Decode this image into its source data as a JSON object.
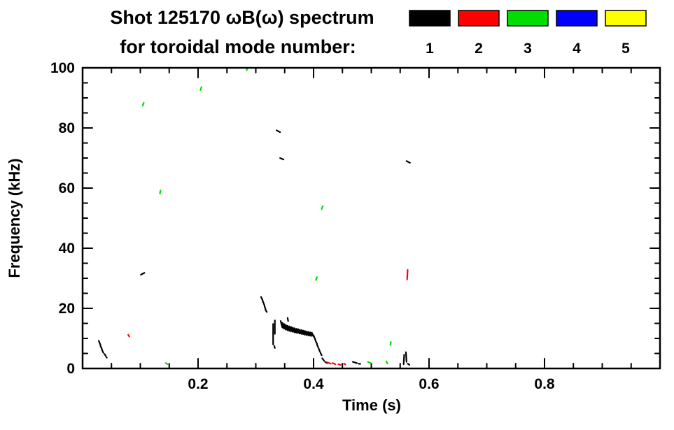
{
  "title": {
    "line1": "Shot 125170 ωB(ω) spectrum",
    "line2": "for toroidal mode number:"
  },
  "legend": {
    "items": [
      {
        "label": "1",
        "color": "#000000"
      },
      {
        "label": "2",
        "color": "#ff0000"
      },
      {
        "label": "3",
        "color": "#00dd00"
      },
      {
        "label": "4",
        "color": "#0000ff"
      },
      {
        "label": "5",
        "color": "#ffff00"
      }
    ]
  },
  "chart_data": {
    "type": "scatter",
    "title": "Shot 125170 ωB(ω) spectrum for toroidal mode number:",
    "xlabel": "Time (s)",
    "ylabel": "Frequency (kHz)",
    "xlim": [
      0,
      1.0
    ],
    "ylim": [
      0,
      100
    ],
    "x_ticks": [
      0.2,
      0.4,
      0.6,
      0.8
    ],
    "x_tick_labels": [
      "0.2",
      "0.4",
      "0.6",
      "0.8"
    ],
    "y_ticks": [
      0,
      20,
      40,
      60,
      80,
      100
    ],
    "y_tick_labels": [
      "0",
      "20",
      "40",
      "60",
      "80",
      "100"
    ],
    "x_minor_step": 0.05,
    "y_minor_step": 5,
    "grid": false,
    "legend_position": "top-right",
    "series": [
      {
        "name": "1",
        "color": "#000000",
        "segments": [
          [
            0.028,
            9.2,
            0.031,
            7.8
          ],
          [
            0.031,
            7.5,
            0.034,
            6.2
          ],
          [
            0.034,
            6.0,
            0.036,
            5.2
          ],
          [
            0.038,
            4.8,
            0.04,
            4.2
          ],
          [
            0.041,
            3.8,
            0.042,
            3.6
          ],
          [
            0.101,
            31.2,
            0.107,
            31.8
          ],
          [
            0.309,
            23.8,
            0.312,
            22.6
          ],
          [
            0.312,
            22.4,
            0.315,
            21.0
          ],
          [
            0.315,
            20.8,
            0.317,
            19.6
          ],
          [
            0.317,
            19.4,
            0.319,
            18.8
          ],
          [
            0.33,
            14.8,
            0.33,
            8.0
          ],
          [
            0.333,
            16.0,
            0.333,
            11.5
          ],
          [
            0.332,
            7.5,
            0.333,
            6.8
          ],
          [
            0.336,
            79.2,
            0.342,
            78.6
          ],
          [
            0.342,
            70.0,
            0.348,
            69.5
          ],
          [
            0.561,
            69.0,
            0.567,
            68.4
          ],
          [
            0.343,
            15.8,
            0.346,
            13.6
          ],
          [
            0.346,
            15.2,
            0.349,
            13.2
          ],
          [
            0.349,
            14.8,
            0.352,
            12.9
          ],
          [
            0.352,
            14.5,
            0.355,
            12.7
          ],
          [
            0.355,
            16.8,
            0.356,
            15.8
          ],
          [
            0.355,
            14.2,
            0.358,
            12.5
          ],
          [
            0.358,
            14.0,
            0.361,
            12.3
          ],
          [
            0.361,
            13.8,
            0.364,
            12.2
          ],
          [
            0.364,
            13.6,
            0.367,
            12.0
          ],
          [
            0.367,
            13.4,
            0.37,
            11.9
          ],
          [
            0.37,
            13.2,
            0.373,
            11.8
          ],
          [
            0.373,
            13.1,
            0.376,
            11.6
          ],
          [
            0.376,
            12.9,
            0.379,
            11.5
          ],
          [
            0.379,
            12.8,
            0.382,
            11.4
          ],
          [
            0.382,
            12.6,
            0.385,
            11.2
          ],
          [
            0.385,
            12.5,
            0.388,
            11.1
          ],
          [
            0.388,
            12.3,
            0.391,
            11.0
          ],
          [
            0.391,
            12.2,
            0.394,
            10.9
          ],
          [
            0.394,
            12.0,
            0.397,
            10.8
          ],
          [
            0.397,
            11.9,
            0.4,
            10.7
          ],
          [
            0.4,
            11.0,
            0.403,
            9.6
          ],
          [
            0.403,
            9.4,
            0.406,
            8.2
          ],
          [
            0.406,
            8.0,
            0.408,
            7.0
          ],
          [
            0.409,
            6.6,
            0.411,
            5.6
          ],
          [
            0.412,
            5.2,
            0.414,
            4.4
          ],
          [
            0.415,
            3.4,
            0.418,
            2.6
          ],
          [
            0.42,
            2.2,
            0.424,
            1.8
          ],
          [
            0.468,
            2.2,
            0.475,
            1.8
          ],
          [
            0.478,
            1.6,
            0.481,
            1.5
          ],
          [
            0.556,
            1.4,
            0.557,
            4.6
          ],
          [
            0.56,
            5.4,
            0.561,
            2.2
          ],
          [
            0.563,
            1.6,
            0.566,
            1.2
          ]
        ]
      },
      {
        "name": "2",
        "color": "#ff0000",
        "segments": [
          [
            0.079,
            11.2,
            0.081,
            10.6
          ],
          [
            0.424,
            2.0,
            0.43,
            1.6
          ],
          [
            0.433,
            1.8,
            0.438,
            1.4
          ],
          [
            0.443,
            1.4,
            0.447,
            1.2
          ],
          [
            0.453,
            1.6,
            0.455,
            1.3
          ],
          [
            0.562,
            29.6,
            0.563,
            32.8
          ]
        ]
      },
      {
        "name": "3",
        "color": "#00dd00",
        "segments": [
          [
            0.104,
            87.4,
            0.106,
            88.4
          ],
          [
            0.134,
            58.2,
            0.135,
            59.2
          ],
          [
            0.204,
            92.6,
            0.206,
            93.6
          ],
          [
            0.284,
            99.2,
            0.286,
            100.0
          ],
          [
            0.414,
            53.0,
            0.416,
            54.0
          ],
          [
            0.404,
            29.4,
            0.406,
            30.4
          ],
          [
            0.144,
            1.8,
            0.147,
            1.4
          ],
          [
            0.494,
            2.2,
            0.499,
            1.8
          ],
          [
            0.526,
            2.4,
            0.528,
            1.6
          ],
          [
            0.533,
            7.8,
            0.534,
            8.8
          ]
        ]
      },
      {
        "name": "4",
        "color": "#0000ff",
        "segments": []
      },
      {
        "name": "5",
        "color": "#ffff00",
        "segments": []
      }
    ]
  }
}
